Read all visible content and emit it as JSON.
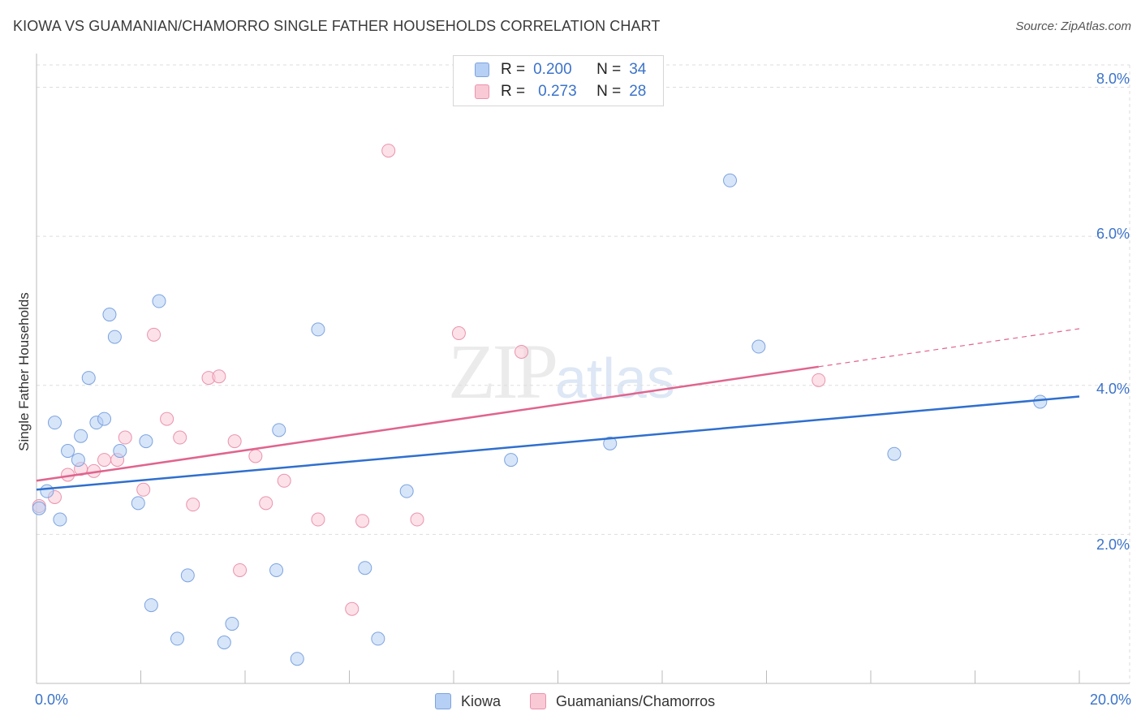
{
  "header": {
    "title": "KIOWA VS GUAMANIAN/CHAMORRO SINGLE FATHER HOUSEHOLDS CORRELATION CHART",
    "source": "Source: ZipAtlas.com"
  },
  "watermark": {
    "zip": "ZIP",
    "atlas": "atlas"
  },
  "legend": {
    "rows": [
      {
        "r_label": "R =",
        "r_value": "0.200",
        "n_label": "N =",
        "n_value": "34"
      },
      {
        "r_label": "R =",
        "r_value": "0.273",
        "n_label": "N =",
        "n_value": "28"
      }
    ]
  },
  "bottom_legend": {
    "kiowa": "Kiowa",
    "guam": "Guamanians/Chamorros"
  },
  "colors": {
    "kiowa_fill": "#b6cff4",
    "kiowa_stroke": "#7ca3e0",
    "kiowa_line": "#2f6fce",
    "guam_fill": "#f9c9d6",
    "guam_stroke": "#ea93ad",
    "guam_line": "#e0648e",
    "tick_text": "#3b73c9",
    "grid": "#dddddd"
  },
  "chart_data": {
    "type": "scatter",
    "title": "KIOWA VS GUAMANIAN/CHAMORRO SINGLE FATHER HOUSEHOLDS CORRELATION CHART",
    "xlabel": "",
    "ylabel": "Single Father Households",
    "xlim": [
      0,
      20
    ],
    "ylim": [
      0,
      8.3
    ],
    "x_tick_labels": [
      "0.0%",
      "20.0%"
    ],
    "y_ticks": [
      2,
      4,
      6,
      8
    ],
    "y_tick_labels": [
      "2.0%",
      "4.0%",
      "6.0%",
      "8.0%"
    ],
    "series": [
      {
        "name": "Kiowa",
        "r": 0.2,
        "n": 34,
        "trend": {
          "x": [
            0,
            20
          ],
          "y": [
            2.6,
            3.85
          ]
        },
        "points": [
          [
            0.05,
            2.35
          ],
          [
            0.2,
            2.58
          ],
          [
            0.35,
            3.5
          ],
          [
            0.45,
            2.2
          ],
          [
            0.6,
            3.12
          ],
          [
            0.8,
            3.0
          ],
          [
            0.85,
            3.32
          ],
          [
            1.0,
            4.1
          ],
          [
            1.15,
            3.5
          ],
          [
            1.3,
            3.55
          ],
          [
            1.4,
            4.95
          ],
          [
            1.5,
            4.65
          ],
          [
            1.6,
            3.12
          ],
          [
            1.95,
            2.42
          ],
          [
            2.1,
            3.25
          ],
          [
            2.2,
            1.05
          ],
          [
            2.35,
            5.13
          ],
          [
            2.7,
            0.6
          ],
          [
            2.9,
            1.45
          ],
          [
            3.6,
            0.55
          ],
          [
            3.75,
            0.8
          ],
          [
            4.6,
            1.52
          ],
          [
            4.65,
            3.4
          ],
          [
            5.0,
            0.33
          ],
          [
            5.4,
            4.75
          ],
          [
            6.3,
            1.55
          ],
          [
            6.55,
            0.6
          ],
          [
            7.1,
            2.58
          ],
          [
            9.1,
            3.0
          ],
          [
            11.0,
            3.22
          ],
          [
            13.3,
            6.75
          ],
          [
            13.85,
            4.52
          ],
          [
            16.45,
            3.08
          ],
          [
            19.25,
            3.78
          ]
        ]
      },
      {
        "name": "Guamanians/Chamorros",
        "r": 0.273,
        "n": 28,
        "trend": {
          "x": [
            0,
            15.0
          ],
          "y": [
            2.72,
            4.25
          ]
        },
        "trend_dashed": {
          "x": [
            15.0,
            20
          ],
          "y": [
            4.25,
            4.76
          ]
        },
        "points": [
          [
            0.05,
            2.38
          ],
          [
            0.35,
            2.5
          ],
          [
            0.6,
            2.8
          ],
          [
            0.85,
            2.88
          ],
          [
            1.1,
            2.85
          ],
          [
            1.3,
            3.0
          ],
          [
            1.55,
            3.0
          ],
          [
            1.7,
            3.3
          ],
          [
            2.05,
            2.6
          ],
          [
            2.25,
            4.68
          ],
          [
            2.5,
            3.55
          ],
          [
            2.75,
            3.3
          ],
          [
            3.0,
            2.4
          ],
          [
            3.3,
            4.1
          ],
          [
            3.5,
            4.12
          ],
          [
            3.8,
            3.25
          ],
          [
            3.9,
            1.52
          ],
          [
            4.2,
            3.05
          ],
          [
            4.4,
            2.42
          ],
          [
            4.75,
            2.72
          ],
          [
            5.4,
            2.2
          ],
          [
            6.05,
            1.0
          ],
          [
            6.25,
            2.18
          ],
          [
            6.75,
            7.15
          ],
          [
            7.3,
            2.2
          ],
          [
            8.1,
            4.7
          ],
          [
            9.3,
            4.45
          ],
          [
            15.0,
            4.07
          ]
        ]
      }
    ]
  }
}
